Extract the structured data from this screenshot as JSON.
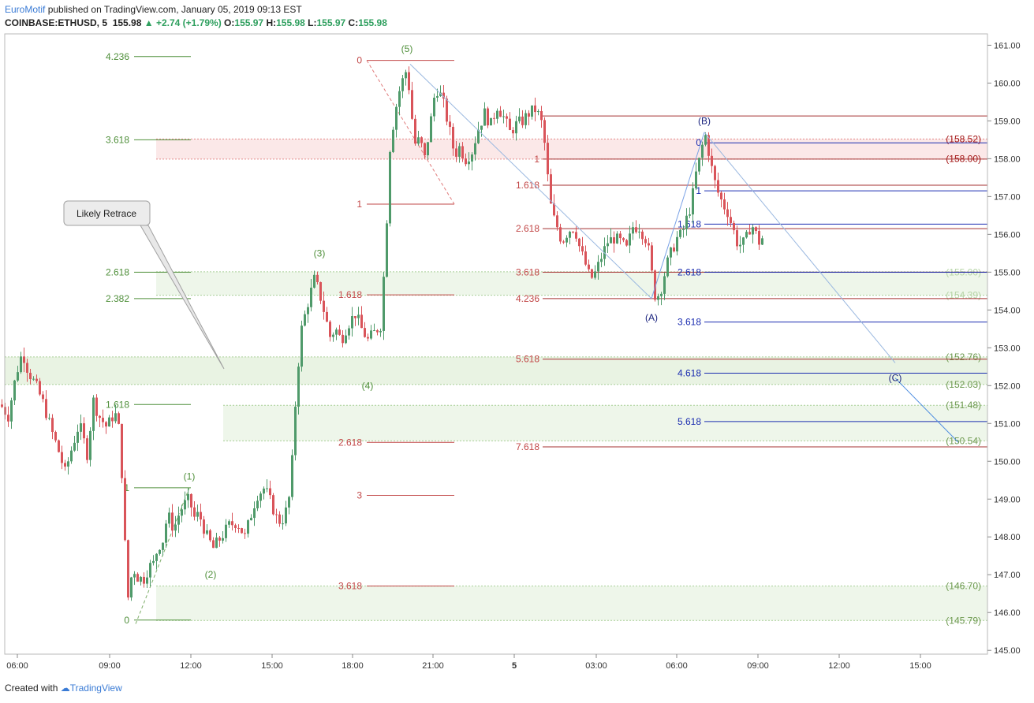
{
  "header": {
    "brand": "EuroMotif",
    "published": " published on TradingView.com, January 05, 2019 09:13 EST",
    "symbol": "COINBASE:ETHUSD, 5",
    "last": "155.98",
    "change": "+2.74 (+1.79%)",
    "o_label": "O:",
    "o": "155.97",
    "h_label": "H:",
    "h": "155.98",
    "l_label": "L:",
    "l": "155.97",
    "c_label": "C:",
    "c": "155.98"
  },
  "footer": {
    "created": "Created with",
    "brand": "TradingView"
  },
  "chart_data": {
    "type": "candlestick",
    "symbol": "COINBASE:ETHUSD",
    "interval": "5",
    "ylim": [
      144.9,
      161.3
    ],
    "y_ticks": [
      161,
      160,
      159,
      158,
      157,
      156,
      155,
      154,
      153,
      152,
      151,
      150,
      149,
      148,
      147,
      146,
      145
    ],
    "x_ticks": [
      "06:00",
      "09:00",
      "12:00",
      "15:00",
      "18:00",
      "21:00",
      "5",
      "03:00",
      "06:00",
      "09:00",
      "12:00",
      "15:00"
    ],
    "path_points": [
      [
        0,
        151.5
      ],
      [
        10,
        151.2
      ],
      [
        20,
        152.3
      ],
      [
        28,
        152.9
      ],
      [
        35,
        152.4
      ],
      [
        45,
        152.0
      ],
      [
        55,
        151.5
      ],
      [
        65,
        150.8
      ],
      [
        75,
        150.2
      ],
      [
        82,
        149.7
      ],
      [
        90,
        150.3
      ],
      [
        100,
        151.0
      ],
      [
        110,
        150.2
      ],
      [
        118,
        151.6
      ],
      [
        125,
        151.2
      ],
      [
        135,
        150.9
      ],
      [
        145,
        151.3
      ],
      [
        152,
        150.7
      ],
      [
        155,
        149.2
      ],
      [
        158,
        147.8
      ],
      [
        162,
        146.4
      ],
      [
        168,
        147.2
      ],
      [
        175,
        146.9
      ],
      [
        182,
        146.9
      ],
      [
        188,
        147.2
      ],
      [
        195,
        147.3
      ],
      [
        200,
        147.8
      ],
      [
        205,
        147.8
      ],
      [
        212,
        148.6
      ],
      [
        220,
        148.2
      ],
      [
        228,
        148.7
      ],
      [
        235,
        148.9
      ],
      [
        240,
        149.0
      ],
      [
        245,
        148.5
      ],
      [
        252,
        148.6
      ],
      [
        262,
        148.0
      ],
      [
        270,
        147.7
      ],
      [
        280,
        148.0
      ],
      [
        290,
        148.3
      ],
      [
        300,
        148.4
      ],
      [
        310,
        148.0
      ],
      [
        318,
        148.6
      ],
      [
        325,
        149.1
      ],
      [
        335,
        149.3
      ],
      [
        345,
        148.8
      ],
      [
        352,
        148.4
      ],
      [
        360,
        148.5
      ],
      [
        368,
        149.2
      ],
      [
        372,
        150.8
      ],
      [
        376,
        152.2
      ],
      [
        382,
        153.5
      ],
      [
        390,
        154.2
      ],
      [
        398,
        154.8
      ],
      [
        404,
        154.5
      ],
      [
        410,
        154.0
      ],
      [
        418,
        153.3
      ],
      [
        425,
        153.5
      ],
      [
        432,
        153.2
      ],
      [
        440,
        153.6
      ],
      [
        450,
        153.9
      ],
      [
        458,
        153.5
      ],
      [
        466,
        153.2
      ],
      [
        474,
        153.4
      ],
      [
        482,
        153.6
      ],
      [
        488,
        155.5
      ],
      [
        494,
        158.3
      ],
      [
        500,
        159.2
      ],
      [
        506,
        159.8
      ],
      [
        512,
        160.2
      ],
      [
        516,
        160.4
      ],
      [
        520,
        159.4
      ],
      [
        526,
        158.4
      ],
      [
        532,
        158.5
      ],
      [
        538,
        158.0
      ],
      [
        545,
        158.9
      ],
      [
        552,
        159.9
      ],
      [
        560,
        159.6
      ],
      [
        568,
        158.9
      ],
      [
        576,
        158.1
      ],
      [
        582,
        158.3
      ],
      [
        590,
        158.0
      ],
      [
        598,
        158.2
      ],
      [
        606,
        158.8
      ],
      [
        614,
        159.2
      ],
      [
        622,
        158.9
      ],
      [
        630,
        159.4
      ],
      [
        638,
        159.1
      ],
      [
        646,
        158.7
      ],
      [
        654,
        158.9
      ],
      [
        662,
        159.0
      ],
      [
        670,
        159.2
      ],
      [
        678,
        159.3
      ],
      [
        684,
        159.1
      ],
      [
        688,
        158.8
      ],
      [
        692,
        158.0
      ],
      [
        696,
        157.0
      ],
      [
        700,
        156.5
      ],
      [
        706,
        156.2
      ],
      [
        712,
        155.8
      ],
      [
        720,
        156.1
      ],
      [
        728,
        156.2
      ],
      [
        735,
        155.6
      ],
      [
        742,
        155.2
      ],
      [
        748,
        154.8
      ],
      [
        755,
        155.0
      ],
      [
        762,
        155.4
      ],
      [
        770,
        155.8
      ],
      [
        778,
        155.9
      ],
      [
        786,
        155.8
      ],
      [
        794,
        155.6
      ],
      [
        802,
        156.2
      ],
      [
        810,
        156.2
      ],
      [
        818,
        155.9
      ],
      [
        824,
        155.4
      ],
      [
        828,
        154.5
      ],
      [
        832,
        154.3
      ],
      [
        838,
        154.6
      ],
      [
        845,
        155.2
      ],
      [
        852,
        155.6
      ],
      [
        858,
        155.9
      ],
      [
        864,
        156.0
      ],
      [
        870,
        156.4
      ],
      [
        876,
        156.8
      ],
      [
        882,
        157.6
      ],
      [
        888,
        158.1
      ],
      [
        893,
        158.7
      ],
      [
        898,
        158.2
      ],
      [
        904,
        157.5
      ],
      [
        910,
        157.1
      ],
      [
        916,
        156.8
      ],
      [
        922,
        156.6
      ],
      [
        928,
        156.2
      ],
      [
        934,
        155.8
      ],
      [
        940,
        155.7
      ],
      [
        946,
        155.9
      ],
      [
        952,
        156.3
      ],
      [
        958,
        156.0
      ],
      [
        962,
        155.8
      ],
      [
        966,
        155.9
      ]
    ],
    "zones": [
      {
        "x1": 198,
        "x2": 1252,
        "y1": 157.99,
        "y2": 158.52,
        "fill": "#fbe8e8"
      },
      {
        "x1": 198,
        "x2": 1252,
        "y1": 154.39,
        "y2": 155.01,
        "fill": "#eef6ea"
      },
      {
        "x1": 6,
        "x2": 1252,
        "y1": 152.03,
        "y2": 152.76,
        "fill": "#e9f3e3"
      },
      {
        "x1": 283,
        "x2": 1252,
        "y1": 150.54,
        "y2": 151.48,
        "fill": "#eef6ea"
      },
      {
        "x1": 198,
        "x2": 1252,
        "y1": 145.79,
        "y2": 146.7,
        "fill": "#eef6ea"
      }
    ],
    "zone_labels": [
      {
        "text": "(158.52)",
        "y": 158.52,
        "color": "#a31515"
      },
      {
        "text": "(158.00)",
        "y": 158.0,
        "color": "#a31515"
      },
      {
        "text": "(155.00)",
        "y": 155.0,
        "color": "#b5d4a5"
      },
      {
        "text": "(154.39)",
        "y": 154.39,
        "color": "#b5d4a5"
      },
      {
        "text": "(152.76)",
        "y": 152.76,
        "color": "#6e9a50"
      },
      {
        "text": "(152.03)",
        "y": 152.03,
        "color": "#6e9a50"
      },
      {
        "text": "(151.48)",
        "y": 151.48,
        "color": "#6e9a50"
      },
      {
        "text": "(150.54)",
        "y": 150.54,
        "color": "#6e9a50"
      },
      {
        "text": "(146.70)",
        "y": 146.7,
        "color": "#6e9a50"
      },
      {
        "text": "(145.79)",
        "y": 145.79,
        "color": "#6e9a50"
      }
    ],
    "fib_green": [
      {
        "text": "4.236",
        "y": 160.7,
        "x1": 170,
        "x2": 242
      },
      {
        "text": "3.618",
        "y": 158.5,
        "x1": 170,
        "x2": 242
      },
      {
        "text": "2.618",
        "y": 155.0,
        "x1": 170,
        "x2": 242
      },
      {
        "text": "2.382",
        "y": 154.3,
        "x1": 170,
        "x2": 242
      },
      {
        "text": "1.618",
        "y": 151.5,
        "x1": 170,
        "x2": 242
      },
      {
        "text": "1",
        "y": 149.3,
        "x1": 170,
        "x2": 242
      },
      {
        "text": "0",
        "y": 145.8,
        "x1": 170,
        "x2": 242
      }
    ],
    "fib_red": [
      {
        "text": "0",
        "y": 160.6,
        "x1": 465,
        "x2": 576
      },
      {
        "text": "1",
        "y": 156.8,
        "x1": 465,
        "x2": 576
      },
      {
        "text": "1.618",
        "y": 154.4,
        "x1": 465,
        "x2": 576
      },
      {
        "text": "2.618",
        "y": 150.5,
        "x1": 465,
        "x2": 576
      },
      {
        "text": "3",
        "y": 149.1,
        "x1": 465,
        "x2": 576
      },
      {
        "text": "3.618",
        "y": 146.7,
        "x1": 465,
        "x2": 576
      }
    ],
    "fib_maroon": [
      {
        "text": "",
        "y": 159.13,
        "x1": 688,
        "x2": 1252
      },
      {
        "text": "1",
        "y": 157.99,
        "x1": 688,
        "x2": 1252
      },
      {
        "text": "1.618",
        "y": 157.3,
        "x1": 688,
        "x2": 1252
      },
      {
        "text": "2.618",
        "y": 156.15,
        "x1": 688,
        "x2": 1252
      },
      {
        "text": "3.618",
        "y": 155.0,
        "x1": 688,
        "x2": 1252
      },
      {
        "text": "4.236",
        "y": 154.3,
        "x1": 688,
        "x2": 1252
      },
      {
        "text": "5.618",
        "y": 152.7,
        "x1": 688,
        "x2": 1252
      },
      {
        "text": "7.618",
        "y": 150.38,
        "x1": 688,
        "x2": 1252
      }
    ],
    "fib_blue": [
      {
        "text": "0",
        "y": 158.42,
        "x1": 893,
        "x2": 1252
      },
      {
        "text": "1",
        "y": 157.15,
        "x1": 893,
        "x2": 1252
      },
      {
        "text": "1.618",
        "y": 156.27,
        "x1": 893,
        "x2": 1252
      },
      {
        "text": "2.618",
        "y": 155.0,
        "x1": 893,
        "x2": 1252
      },
      {
        "text": "3.618",
        "y": 153.68,
        "x1": 893,
        "x2": 1252
      },
      {
        "text": "4.618",
        "y": 152.33,
        "x1": 893,
        "x2": 1252
      },
      {
        "text": "5.618",
        "y": 151.05,
        "x1": 893,
        "x2": 1252
      }
    ],
    "wave_labels": [
      {
        "text": "(1)",
        "x": 240,
        "y": 149.6,
        "color": "#4f8f3a"
      },
      {
        "text": "(2)",
        "x": 267,
        "y": 147.0,
        "color": "#4f8f3a"
      },
      {
        "text": "(3)",
        "x": 405,
        "y": 155.5,
        "color": "#4f8f3a"
      },
      {
        "text": "(4)",
        "x": 466,
        "y": 152.0,
        "color": "#4f8f3a"
      },
      {
        "text": "(5)",
        "x": 516,
        "y": 160.9,
        "color": "#4f8f3a"
      },
      {
        "text": "(A)",
        "x": 826,
        "y": 153.8,
        "color": "#1a237e"
      },
      {
        "text": "(B)",
        "x": 893,
        "y": 159.0,
        "color": "#1a237e"
      },
      {
        "text": "(C)",
        "x": 1135,
        "y": 152.2,
        "color": "#1a237e"
      }
    ],
    "callout": "Likely Retrace"
  }
}
